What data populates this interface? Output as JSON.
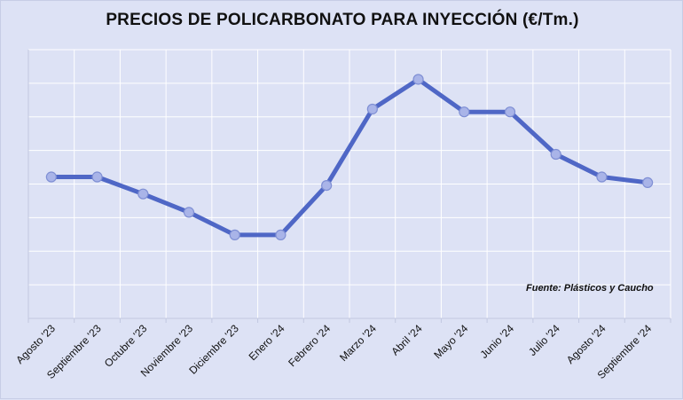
{
  "chart_data": {
    "type": "line",
    "title": "PRECIOS DE POLICARBONATO PARA INYECCIÓN (€/Tm.)",
    "xlabel": "",
    "ylabel": "",
    "categories": [
      "Agosto '23",
      "Septiembre '23",
      "Octubre '23",
      "Noviembre '23",
      "Diciembre '23",
      "Enero '24",
      "Febrero '24",
      "Marzo '24",
      "Abril '24",
      "Mayo '24",
      "Junio '24",
      "Julio '24",
      "Agosto '24",
      "Septiembre '24"
    ],
    "series": [
      {
        "values": [
          3.5,
          3.5,
          2.9,
          2.25,
          1.45,
          1.45,
          3.2,
          5.9,
          6.95,
          5.8,
          5.8,
          4.3,
          3.5,
          3.3
        ]
      }
    ],
    "ylim": [
      -1.5,
      8
    ],
    "grid": true,
    "y_tick_labels_shown": false,
    "line_color": "#4f67c6",
    "marker_color": "#a9b4e8"
  },
  "source_note": "Fuente: Plásticos y Caucho"
}
